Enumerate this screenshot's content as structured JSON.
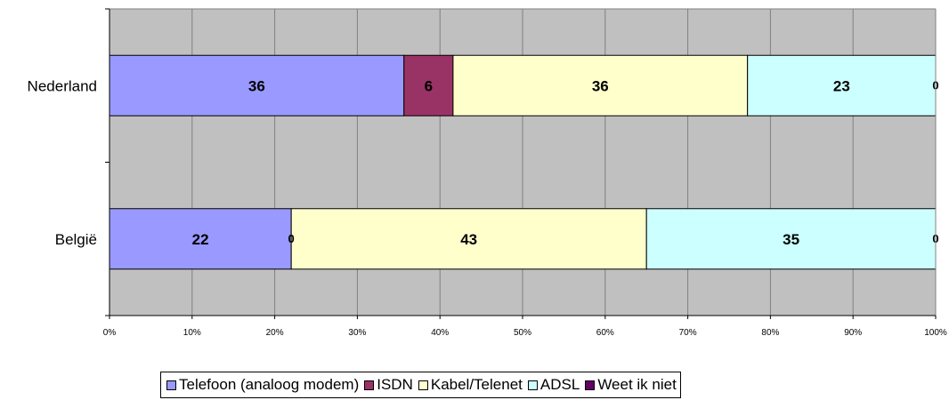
{
  "chart_data": {
    "type": "bar",
    "orientation": "horizontal",
    "stacked": "percent",
    "categories": [
      "Nederland",
      "België"
    ],
    "series": [
      {
        "name": "Telefoon (analoog modem)",
        "color": "#9999FF",
        "values": [
          36,
          22
        ]
      },
      {
        "name": "ISDN",
        "color": "#993366",
        "values": [
          6,
          0
        ]
      },
      {
        "name": "Kabel/Telenet",
        "color": "#FFFFCC",
        "values": [
          36,
          43
        ]
      },
      {
        "name": "ADSL",
        "color": "#CCFFFF",
        "values": [
          23,
          35
        ]
      },
      {
        "name": "Weet ik niet",
        "color": "#660066",
        "values": [
          0,
          0
        ]
      }
    ],
    "xlim": [
      0,
      100
    ],
    "xticks": [
      "0%",
      "10%",
      "20%",
      "30%",
      "40%",
      "50%",
      "60%",
      "70%",
      "80%",
      "90%",
      "100%"
    ],
    "grid": true,
    "plot_background": "#C0C0C0",
    "legend_position": "bottom"
  }
}
